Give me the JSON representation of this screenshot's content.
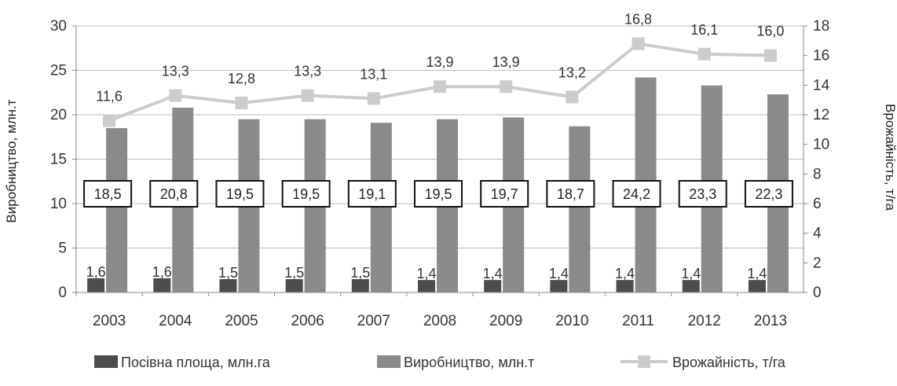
{
  "chart_data": {
    "type": "bar",
    "categories": [
      "2003",
      "2004",
      "2005",
      "2006",
      "2007",
      "2008",
      "2009",
      "2010",
      "2011",
      "2012",
      "2013"
    ],
    "series": [
      {
        "name": "Посівна площа, млн.га",
        "kind": "bar",
        "axis": "left",
        "color": "#4d4d4d",
        "values": [
          1.6,
          1.6,
          1.5,
          1.5,
          1.5,
          1.4,
          1.4,
          1.4,
          1.4,
          1.4,
          1.4
        ],
        "labels": [
          "1,6",
          "1,6",
          "1,5",
          "1,5",
          "1,5",
          "1,4",
          "1,4",
          "1,4",
          "1,4",
          "1,4",
          "1,4"
        ]
      },
      {
        "name": "Виробництво, млн.т",
        "kind": "bar",
        "axis": "left",
        "color": "#8a8a8a",
        "values": [
          18.5,
          20.8,
          19.5,
          19.5,
          19.1,
          19.5,
          19.7,
          18.7,
          24.2,
          23.3,
          22.3
        ],
        "labels": [
          "18,5",
          "20,8",
          "19,5",
          "19,5",
          "19,1",
          "19,5",
          "19,7",
          "18,7",
          "24,2",
          "23,3",
          "22,3"
        ]
      },
      {
        "name": "Врожайність, т/га",
        "kind": "line",
        "axis": "right",
        "color": "#cccccc",
        "values": [
          11.6,
          13.3,
          12.8,
          13.3,
          13.1,
          13.9,
          13.9,
          13.2,
          16.8,
          16.1,
          16.0
        ],
        "labels": [
          "11,6",
          "13,3",
          "12,8",
          "13,3",
          "13,1",
          "13,9",
          "13,9",
          "13,2",
          "16,8",
          "16,1",
          "16,0"
        ]
      }
    ],
    "ylabel": "Виробництво, млн.т",
    "y2label": "Врожайність, т/га",
    "ylim": [
      0,
      30
    ],
    "y2lim": [
      0,
      18
    ],
    "yticks": [
      "0",
      "5",
      "10",
      "15",
      "20",
      "25",
      "30"
    ],
    "y2ticks": [
      "0",
      "2",
      "4",
      "6",
      "8",
      "10",
      "12",
      "14",
      "16",
      "18"
    ],
    "grid": true,
    "legend_position": "bottom"
  }
}
